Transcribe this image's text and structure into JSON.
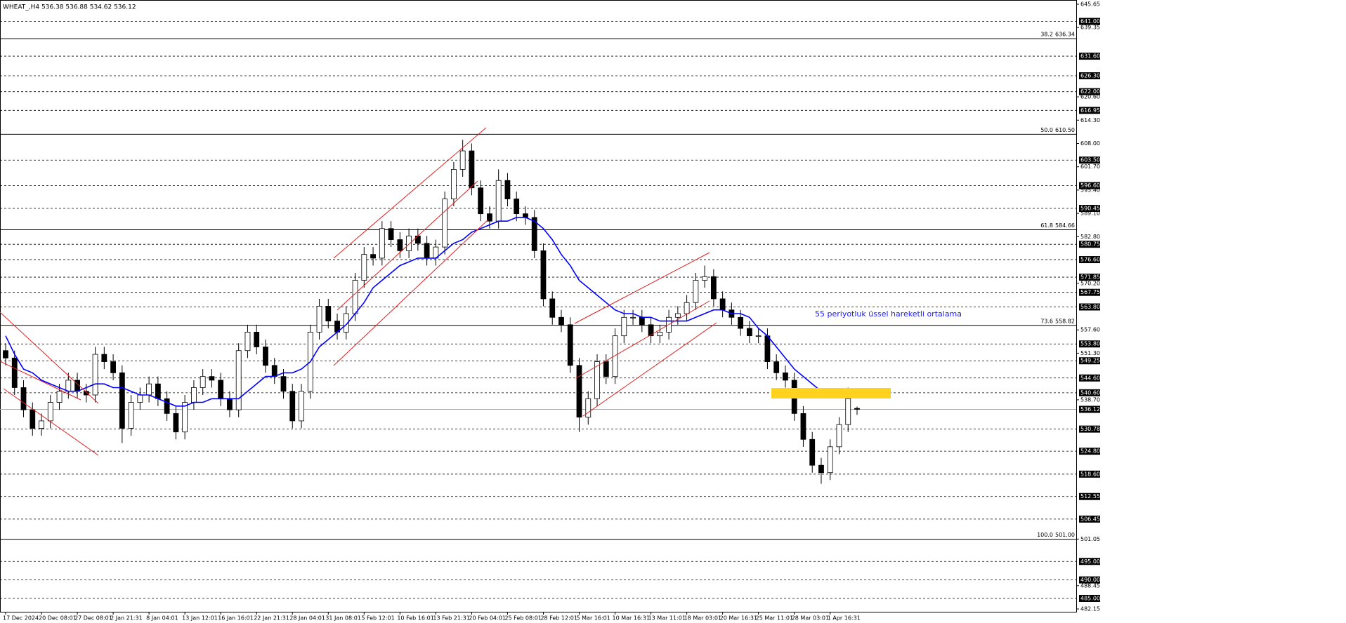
{
  "chart_data": {
    "type": "candlestick",
    "title": "WHEAT_,H4  536.38 536.88 534.62 536.12",
    "annotation": "55 periyotluk üssel hareketli ortalama",
    "categories": [
      "17 Dec 2024",
      null,
      null,
      null,
      "20 Dec 08:01",
      null,
      null,
      null,
      "27 Dec 08:01",
      null,
      null,
      null,
      "2 Jan 21:31",
      null,
      null,
      null,
      "8 Jan 04:01",
      null,
      null,
      null,
      "13 Jan 12:01",
      null,
      null,
      null,
      "16 Jan 16:01",
      null,
      null,
      null,
      "22 Jan 21:31",
      null,
      null,
      null,
      "28 Jan 04:01",
      null,
      null,
      null,
      "31 Jan 08:01",
      null,
      null,
      null,
      "5 Feb 12:01",
      null,
      null,
      null,
      "10 Feb 16:01",
      null,
      null,
      null,
      "13 Feb 21:31",
      null,
      null,
      null,
      "20 Feb 04:01",
      null,
      null,
      null,
      "25 Feb 08:01",
      null,
      null,
      null,
      "28 Feb 12:01",
      null,
      null,
      null,
      "5 Mar 16:01",
      null,
      null,
      null,
      "10 Mar 16:31",
      null,
      null,
      null,
      "13 Mar 11:01",
      null,
      null,
      null,
      "18 Mar 03:01",
      null,
      null,
      null,
      "20 Mar 16:31",
      null,
      null,
      null,
      "25 Mar 11:01",
      null,
      null,
      null,
      "28 Mar 03:01",
      null,
      null,
      null,
      "1 Apr 16:31",
      null,
      null,
      null
    ],
    "open": [
      552,
      550,
      542,
      536,
      531,
      533,
      538,
      541,
      544,
      541,
      540,
      551,
      549,
      546,
      531,
      538,
      540,
      543,
      539,
      535,
      530,
      538,
      542,
      545,
      544,
      539,
      536,
      552,
      557,
      553,
      548,
      545,
      541,
      533,
      541,
      557,
      564,
      560,
      557,
      562,
      571,
      578,
      577,
      585,
      582,
      579,
      583,
      581,
      577,
      580,
      593,
      601,
      606,
      596,
      589,
      587,
      598,
      593,
      589,
      588,
      579,
      566,
      561,
      559,
      548,
      534,
      539,
      549,
      545,
      556,
      561,
      561,
      559,
      556,
      557,
      561,
      562,
      565,
      571,
      572,
      566,
      563,
      561,
      558,
      556,
      556,
      549,
      546,
      544,
      535,
      528,
      521,
      519,
      526,
      532,
      536.38
    ],
    "high": [
      554,
      552,
      544,
      538,
      535,
      540,
      543,
      546,
      546,
      543,
      553,
      553,
      551,
      548,
      540,
      542,
      545,
      545,
      541,
      537,
      540,
      544,
      547,
      547,
      546,
      541,
      554,
      559,
      559,
      555,
      550,
      547,
      543,
      543,
      559,
      566,
      566,
      562,
      564,
      573,
      580,
      580,
      587,
      587,
      584,
      585,
      585,
      583,
      582,
      595,
      603,
      609,
      608,
      598,
      591,
      601,
      600,
      595,
      591,
      590,
      581,
      568,
      563,
      561,
      550,
      541,
      551,
      551,
      558,
      563,
      563,
      563,
      561,
      559,
      563,
      564,
      567,
      573,
      575,
      574,
      568,
      565,
      563,
      560,
      558,
      558,
      551,
      548,
      546,
      537,
      530,
      523,
      528,
      534,
      542,
      536.88
    ],
    "low": [
      548,
      540,
      534,
      529,
      529,
      531,
      536,
      539,
      539,
      538,
      538,
      547,
      544,
      527,
      529,
      536,
      538,
      537,
      533,
      528,
      528,
      536,
      540,
      542,
      537,
      534,
      534,
      550,
      551,
      546,
      543,
      539,
      531,
      531,
      539,
      555,
      558,
      555,
      555,
      560,
      569,
      575,
      575,
      580,
      577,
      577,
      579,
      575,
      575,
      578,
      591,
      599,
      594,
      587,
      585,
      585,
      591,
      587,
      586,
      577,
      564,
      559,
      557,
      546,
      530,
      532,
      537,
      543,
      543,
      554,
      559,
      557,
      554,
      554,
      555,
      559,
      560,
      563,
      569,
      564,
      561,
      559,
      556,
      554,
      554,
      547,
      544,
      542,
      533,
      526,
      519,
      516,
      517,
      524,
      530,
      534.62
    ],
    "close": [
      550,
      542,
      536,
      531,
      533,
      538,
      541,
      544,
      541,
      540,
      551,
      549,
      546,
      531,
      538,
      540,
      543,
      539,
      535,
      530,
      538,
      542,
      545,
      544,
      539,
      536,
      552,
      557,
      553,
      548,
      545,
      541,
      533,
      541,
      557,
      564,
      560,
      557,
      562,
      571,
      578,
      577,
      585,
      582,
      579,
      583,
      581,
      577,
      580,
      593,
      601,
      606,
      596,
      589,
      587,
      598,
      593,
      589,
      588,
      579,
      566,
      561,
      559,
      548,
      534,
      539,
      549,
      545,
      556,
      561,
      561,
      559,
      556,
      557,
      561,
      562,
      565,
      571,
      572,
      566,
      563,
      561,
      558,
      556,
      556,
      549,
      546,
      544,
      535,
      528,
      521,
      519,
      526,
      532,
      539,
      536.12
    ],
    "up_color": "#ffffff",
    "down_color": "#000000",
    "ema": {
      "color": "#0000ff",
      "values": [
        556,
        551,
        547,
        546,
        544,
        543,
        542,
        541,
        541,
        542,
        543,
        543,
        542,
        542,
        541,
        540,
        540,
        539,
        538,
        537,
        537,
        538,
        538,
        539,
        539,
        539,
        539,
        541,
        543,
        545,
        545,
        546,
        546,
        547,
        549,
        553,
        555,
        557,
        559,
        562,
        565,
        569,
        571,
        573,
        575,
        576,
        577,
        577,
        577,
        579,
        581,
        582,
        584,
        585,
        586,
        587,
        587,
        588,
        588,
        587,
        585,
        582,
        578,
        575,
        571,
        569,
        567,
        565,
        563,
        562,
        562,
        561,
        561,
        560,
        560,
        560,
        560,
        561,
        562,
        563,
        563,
        562,
        562,
        561,
        558,
        556,
        553,
        550,
        547,
        545,
        543,
        541,
        541,
        540,
        540,
        540
      ]
    },
    "ylim": [
      482.15,
      645.65
    ],
    "yticks": [
      645.65,
      639.35,
      {
        "value": 620.6,
        "label": "620.60"
      },
      {
        "value": 614.3,
        "label": "614.30"
      },
      {
        "value": 608,
        "label": "608.00"
      },
      {
        "value": 601.7,
        "label": "601.70"
      },
      {
        "value": 595.4,
        "label": "595.40"
      },
      {
        "value": 589.1,
        "label": "589.10"
      },
      {
        "value": 582.8,
        "label": "582.80"
      },
      {
        "value": 570.2,
        "label": "570.20"
      },
      {
        "value": 557.6,
        "label": "557.60"
      },
      {
        "value": 551.3,
        "label": "551.30"
      },
      {
        "value": 538.7,
        "label": "538.70"
      },
      501.05,
      488.45,
      482.15
    ],
    "levels": [
      {
        "value": 641,
        "label": "641.00"
      },
      {
        "value": 631.6,
        "label": "631.60"
      },
      {
        "value": 626.3,
        "label": "626.30"
      },
      {
        "value": 622,
        "label": "622.00"
      },
      616.95,
      {
        "value": 603.5,
        "label": "603.50"
      },
      {
        "value": 596.6,
        "label": "596.60"
      },
      590.45,
      580.75,
      {
        "value": 576.6,
        "label": "576.60"
      },
      571.85,
      567.75,
      {
        "value": 563.8,
        "label": "563.80"
      },
      {
        "value": 553.8,
        "label": "553.80"
      },
      549.25,
      {
        "value": 544.6,
        "label": "544.60"
      },
      {
        "value": 540.6,
        "label": "540.60"
      },
      530.78,
      {
        "value": 524.8,
        "label": "524.80"
      },
      {
        "value": 518.6,
        "label": "518.60"
      },
      512.55,
      506.45,
      {
        "value": 495,
        "label": "495.00"
      },
      {
        "value": 490,
        "label": "490.00"
      },
      {
        "value": 485,
        "label": "485.00"
      }
    ],
    "fib_levels": [
      {
        "ratio": "38.2",
        "value": 636.34
      },
      {
        "ratio": "50.0",
        "value": {
          "value": 610.5,
          "label": "610.50"
        }
      },
      {
        "ratio": "61.8",
        "value": 584.66
      },
      {
        "ratio": "73.6",
        "value": 558.82
      },
      {
        "ratio": "100.0",
        "value": {
          "value": 501,
          "label": "501.00"
        }
      }
    ],
    "current_price": 536.12
  }
}
